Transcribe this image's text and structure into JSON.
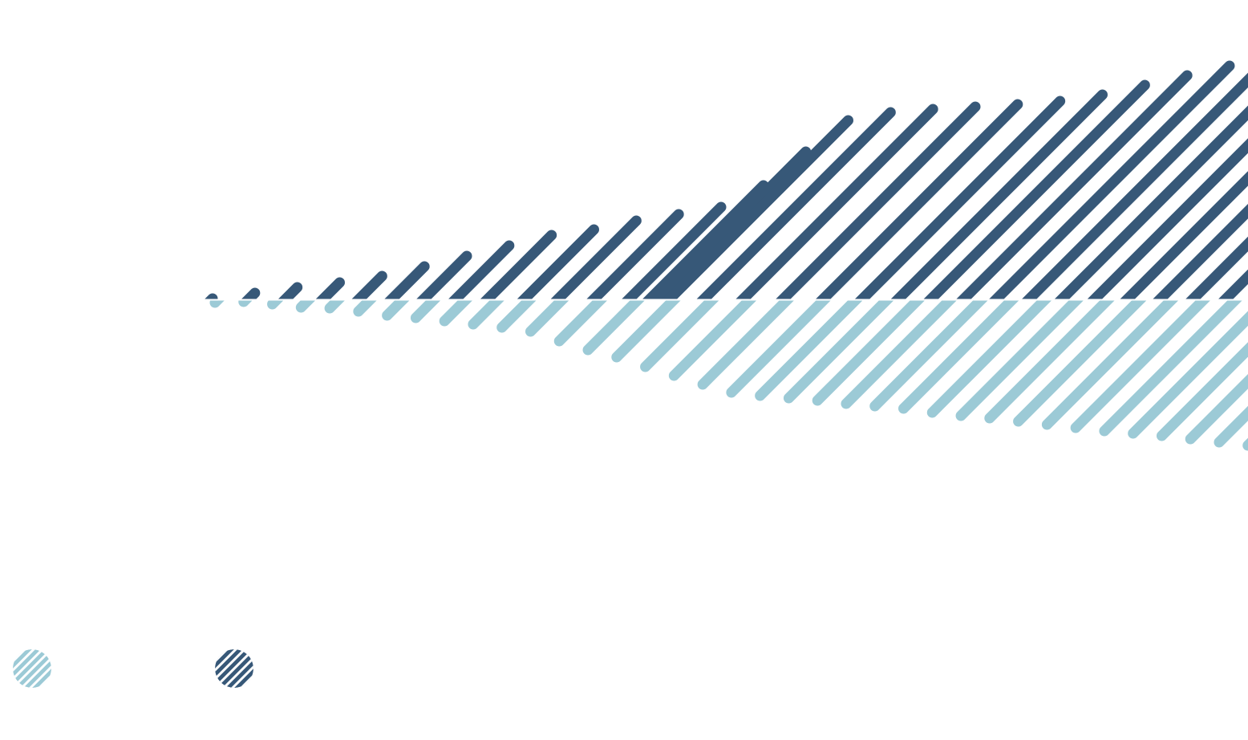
{
  "chart_data": {
    "type": "area",
    "style": "diverging hatched area, rounded diagonal strokes",
    "title": "",
    "xlabel": "",
    "ylabel": "",
    "grid": false,
    "legend_placement": "bottom-left",
    "series": [
      {
        "color": "#375878",
        "direction": "up",
        "values": [
          1,
          8,
          15,
          21,
          29,
          41,
          54,
          67,
          80,
          87,
          98,
          106,
          115,
          142,
          184,
          223,
          233,
          237,
          240,
          243,
          247,
          255,
          267,
          279,
          291
        ]
      },
      {
        "color": "#9ccad6",
        "direction": "down",
        "values": [
          4,
          3,
          6,
          10,
          11,
          15,
          20,
          23,
          27,
          31,
          35,
          40,
          52,
          63,
          72,
          84,
          95,
          106,
          116,
          120,
          123,
          126,
          130,
          133,
          136,
          141,
          145,
          148,
          152,
          156,
          160,
          164,
          167,
          170,
          174,
          178
        ]
      }
    ],
    "legend": [
      {
        "color": "#9ccad6",
        "icon": "hatched-circle"
      },
      {
        "color": "#375878",
        "icon": "hatched-circle"
      }
    ]
  }
}
